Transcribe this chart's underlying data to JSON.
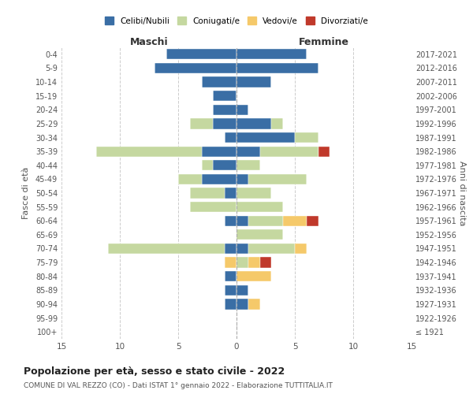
{
  "age_groups": [
    "0-4",
    "5-9",
    "10-14",
    "15-19",
    "20-24",
    "25-29",
    "30-34",
    "35-39",
    "40-44",
    "45-49",
    "50-54",
    "55-59",
    "60-64",
    "65-69",
    "70-74",
    "75-79",
    "80-84",
    "85-89",
    "90-94",
    "95-99",
    "100+"
  ],
  "birth_years": [
    "2017-2021",
    "2012-2016",
    "2007-2011",
    "2002-2006",
    "1997-2001",
    "1992-1996",
    "1987-1991",
    "1982-1986",
    "1977-1981",
    "1972-1976",
    "1967-1971",
    "1962-1966",
    "1957-1961",
    "1952-1956",
    "1947-1951",
    "1942-1946",
    "1937-1941",
    "1932-1936",
    "1927-1931",
    "1922-1926",
    "≤ 1921"
  ],
  "males": {
    "celibi": [
      6,
      7,
      3,
      2,
      2,
      2,
      1,
      3,
      2,
      3,
      1,
      0,
      1,
      0,
      1,
      0,
      1,
      1,
      1,
      0,
      0
    ],
    "coniugati": [
      0,
      0,
      0,
      0,
      0,
      2,
      0,
      9,
      1,
      2,
      3,
      4,
      0,
      0,
      10,
      0,
      0,
      0,
      0,
      0,
      0
    ],
    "vedovi": [
      0,
      0,
      0,
      0,
      0,
      0,
      0,
      0,
      0,
      0,
      0,
      0,
      0,
      0,
      0,
      1,
      0,
      0,
      0,
      0,
      0
    ],
    "divorziati": [
      0,
      0,
      0,
      0,
      0,
      0,
      0,
      0,
      0,
      0,
      0,
      0,
      0,
      0,
      0,
      0,
      0,
      0,
      0,
      0,
      0
    ]
  },
  "females": {
    "nubili": [
      6,
      7,
      3,
      0,
      1,
      3,
      5,
      2,
      0,
      1,
      0,
      0,
      1,
      0,
      1,
      0,
      0,
      1,
      1,
      0,
      0
    ],
    "coniugate": [
      0,
      0,
      0,
      0,
      0,
      1,
      2,
      5,
      2,
      5,
      3,
      4,
      3,
      4,
      4,
      1,
      0,
      0,
      0,
      0,
      0
    ],
    "vedove": [
      0,
      0,
      0,
      0,
      0,
      0,
      0,
      0,
      0,
      0,
      0,
      0,
      2,
      0,
      1,
      1,
      3,
      0,
      1,
      0,
      0
    ],
    "divorziate": [
      0,
      0,
      0,
      0,
      0,
      0,
      0,
      1,
      0,
      0,
      0,
      0,
      1,
      0,
      0,
      1,
      0,
      0,
      0,
      0,
      0
    ]
  },
  "colors": {
    "celibi": "#3a6ea5",
    "coniugati": "#c5d8a0",
    "vedovi": "#f5c96a",
    "divorziati": "#c0392b"
  },
  "xlim": 15,
  "title": "Popolazione per età, sesso e stato civile - 2022",
  "subtitle": "COMUNE DI VAL REZZO (CO) - Dati ISTAT 1° gennaio 2022 - Elaborazione TUTTITALIA.IT",
  "ylabel_left": "Fasce di età",
  "ylabel_right": "Anni di nascita",
  "xlabel_maschi": "Maschi",
  "xlabel_femmine": "Femmine",
  "legend_labels": [
    "Celibi/Nubili",
    "Coniugati/e",
    "Vedovi/e",
    "Divorziati/e"
  ]
}
